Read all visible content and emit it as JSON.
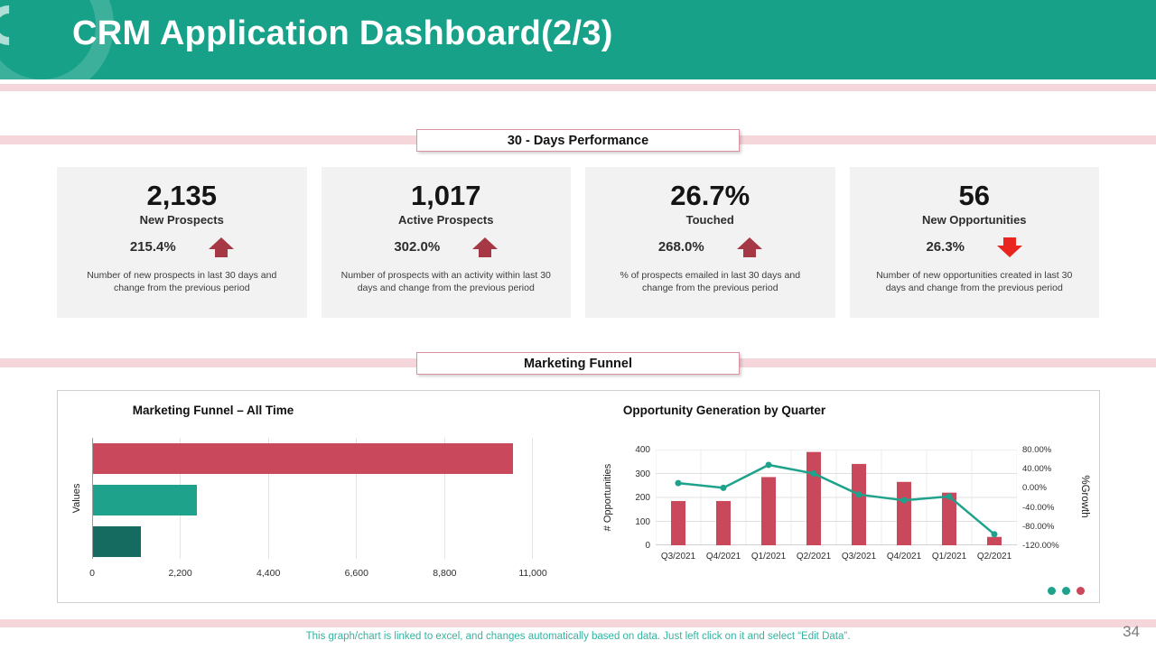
{
  "header": {
    "title": "CRM Application Dashboard(2/3)"
  },
  "sections": {
    "performance": "30 - Days Performance",
    "funnel": "Marketing Funnel"
  },
  "kpi_cards": [
    {
      "value": "2,135",
      "label": "New Prospects",
      "change": "215.4%",
      "direction": "up",
      "description": "Number of new prospects in last 30 days and change from the previous period"
    },
    {
      "value": "1,017",
      "label": "Active Prospects",
      "change": "302.0%",
      "direction": "up",
      "description": "Number of prospects with an activity within last 30 days and change from the previous period"
    },
    {
      "value": "26.7%",
      "label": "Touched",
      "change": "268.0%",
      "direction": "up",
      "description": "% of prospects emailed in last 30 days and change from the previous period"
    },
    {
      "value": "56",
      "label": "New Opportunities",
      "change": "26.3%",
      "direction": "down",
      "description": "Number of new opportunities created in last 30 days and change from the previous period"
    }
  ],
  "chart_data": [
    {
      "type": "bar",
      "orientation": "horizontal",
      "title": "Marketing Funnel – All Time",
      "ylabel": "Values",
      "values": [
        10500,
        2600,
        1200
      ],
      "colors": [
        "#C9485B",
        "#1FA28C",
        "#156B60"
      ],
      "xlim": [
        0,
        11000
      ],
      "xticks": [
        "0",
        "2,200",
        "4,400",
        "6,600",
        "8,800",
        "11,000"
      ],
      "grid": true,
      "legend": "none"
    },
    {
      "type": "combo",
      "title": "Opportunity Generation by Quarter",
      "categories": [
        "Q3/2021",
        "Q4/2021",
        "Q1/2021",
        "Q2/2021",
        "Q3/2021",
        "Q4/2021",
        "Q1/2021",
        "Q2/2021"
      ],
      "bars": {
        "name": "# Opportunities",
        "color": "#C9485B",
        "values": [
          185,
          185,
          285,
          390,
          340,
          265,
          220,
          35
        ]
      },
      "line": {
        "name": "%Growth",
        "color": "#1FA28C",
        "values": [
          10,
          0,
          48,
          30,
          -14,
          -26,
          -18,
          -97
        ]
      },
      "left_axis": {
        "label": "# Opportunities",
        "min": 0,
        "max": 400,
        "ticks": [
          "400",
          "300",
          "200",
          "100",
          "0"
        ]
      },
      "right_axis": {
        "label": "%Growth",
        "min": -120,
        "max": 80,
        "ticks": [
          "80.00%",
          "40.00%",
          "0.00%",
          "-40.00%",
          "-80.00%",
          "-120.00%"
        ]
      },
      "grid": true,
      "legend": "none"
    }
  ],
  "panel_dots": [
    "#1FA28C",
    "#1FA28C",
    "#C9485B"
  ],
  "footer": {
    "note": "This graph/chart is linked to excel, and changes automatically based on data. Just left click on it and select “Edit Data”.",
    "page_number": "34"
  },
  "colors": {
    "header_teal": "#18A189",
    "stripe_pink": "#F4D6DB",
    "card_bg": "#F2F2F2",
    "up_arrow": "#A63845",
    "down_arrow": "#E8251F",
    "accent_teal": "#1FA28C",
    "accent_crimson": "#C9485B",
    "dark_teal": "#156B60"
  }
}
